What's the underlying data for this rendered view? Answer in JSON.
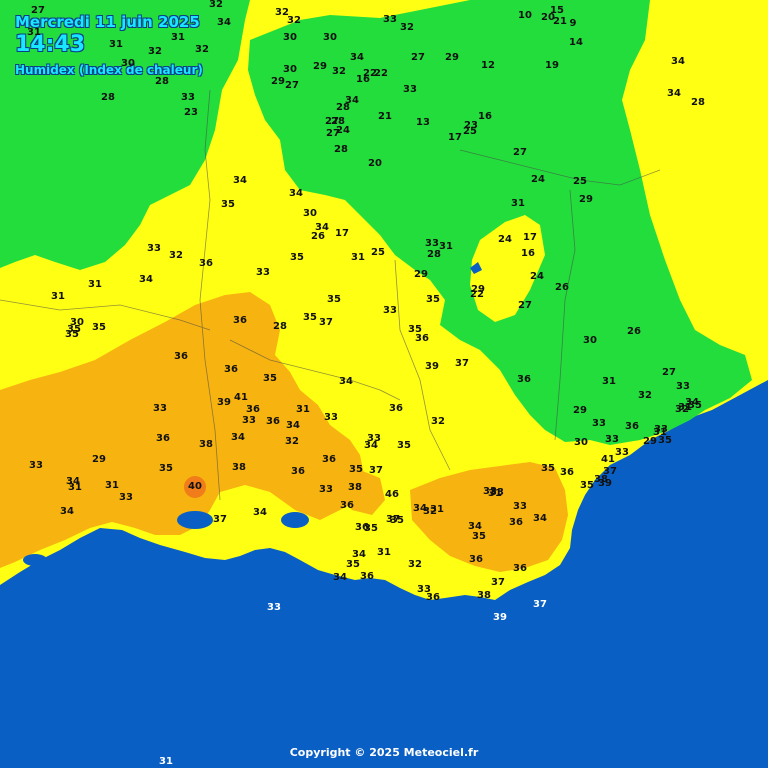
{
  "header": {
    "date": "Mercredi 11 juin 2025",
    "time": "14:43",
    "index_name": "Humidex (Index de chaleur)"
  },
  "footer": {
    "copyright": "Copyright © 2025 Meteociel.fr"
  },
  "colors": {
    "sea": "#0a5fc4",
    "green": "#22dd3c",
    "yellow": "#ffff14",
    "orange": "#f7b310",
    "hotspot": "#f07d1a",
    "title_text": "#19e6ff"
  },
  "station_values": [
    "27",
    "32",
    "32",
    "34",
    "32",
    "30",
    "33",
    "32",
    "10",
    "20",
    "15",
    "21",
    "9",
    "30",
    "31",
    "32",
    "31",
    "32",
    "30",
    "34",
    "14",
    "31",
    "28",
    "28",
    "30",
    "27",
    "29",
    "32",
    "22",
    "22",
    "27",
    "29",
    "12",
    "19",
    "34",
    "34",
    "28",
    "29",
    "33",
    "23",
    "16",
    "33",
    "34",
    "28",
    "27",
    "28",
    "24",
    "27",
    "21",
    "13",
    "17",
    "16",
    "23",
    "25",
    "27",
    "28",
    "20",
    "24",
    "25",
    "29",
    "31",
    "34",
    "34",
    "35",
    "30",
    "34",
    "26",
    "17",
    "25",
    "31",
    "33",
    "35",
    "36",
    "32",
    "33",
    "34",
    "31",
    "31",
    "30",
    "35",
    "35",
    "35",
    "36",
    "28",
    "35",
    "37",
    "35",
    "33",
    "35",
    "36",
    "35",
    "37",
    "39",
    "36",
    "34",
    "36",
    "32",
    "31",
    "33",
    "36",
    "34",
    "33",
    "34",
    "38",
    "36",
    "36",
    "35",
    "33",
    "36",
    "39",
    "41",
    "36",
    "35",
    "40",
    "37",
    "38",
    "34",
    "36",
    "33",
    "35",
    "37",
    "36",
    "38",
    "46",
    "36",
    "35",
    "36",
    "31",
    "34",
    "35",
    "34",
    "36",
    "37",
    "35",
    "34",
    "32",
    "31",
    "34",
    "33",
    "31",
    "35",
    "36",
    "34",
    "33",
    "36",
    "36",
    "37",
    "38",
    "39",
    "37",
    "36",
    "33",
    "32",
    "35",
    "33",
    "34",
    "32",
    "33",
    "31",
    "33",
    "31",
    "28",
    "29",
    "22",
    "29",
    "24",
    "17",
    "16",
    "24",
    "26",
    "27",
    "30",
    "26",
    "31",
    "27",
    "33",
    "29",
    "33",
    "32",
    "31",
    "32",
    "31",
    "34",
    "35",
    "30",
    "33",
    "33",
    "36",
    "29",
    "33",
    "35",
    "41",
    "37",
    "39",
    "38",
    "35",
    "35",
    "36",
    "33",
    "33",
    "34",
    "31",
    "29",
    "31",
    "33",
    "34"
  ]
}
